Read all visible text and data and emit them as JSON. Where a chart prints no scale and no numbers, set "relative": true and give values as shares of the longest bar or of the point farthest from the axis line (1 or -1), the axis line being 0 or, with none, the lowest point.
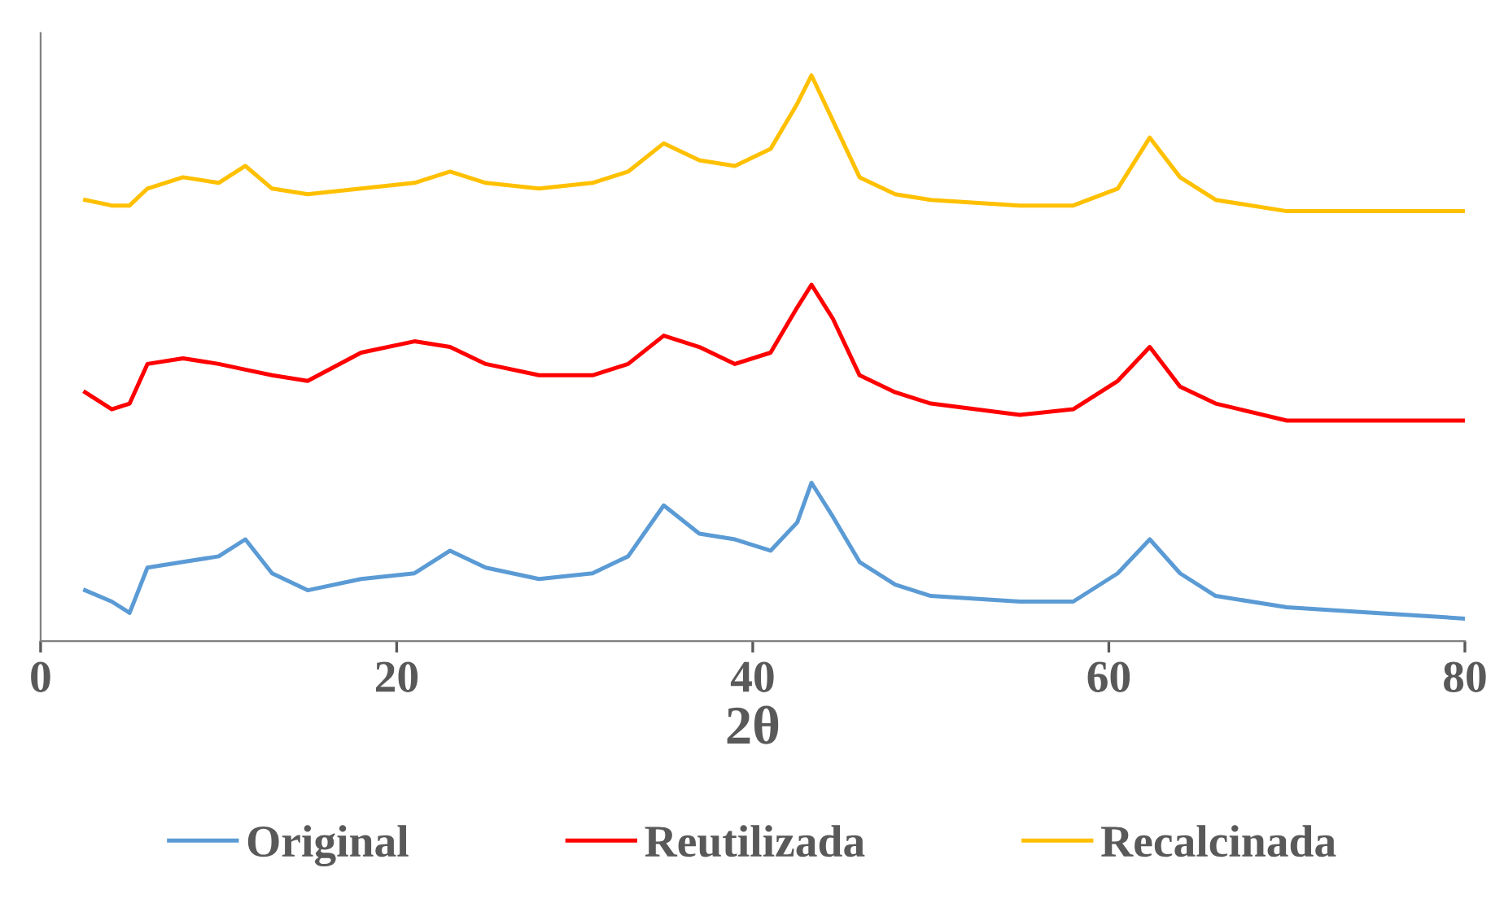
{
  "chart_data": {
    "type": "line",
    "relative": true,
    "xlabel": "2θ",
    "xlim": [
      0,
      80
    ],
    "xticks": [
      0,
      20,
      40,
      60,
      80
    ],
    "grid": false,
    "legend": "bottom",
    "marker": "none",
    "line_style": "solid",
    "x": [
      2.5,
      4,
      5,
      6,
      8,
      10,
      11.5,
      13,
      15,
      18,
      21,
      23,
      25,
      28,
      31,
      33,
      35,
      37,
      39,
      41,
      42.5,
      43.3,
      44.5,
      46,
      48,
      50,
      55,
      58,
      60.5,
      62.3,
      64,
      66,
      70,
      75,
      80
    ],
    "series": [
      {
        "name": "Original",
        "color": "#5b9bd5",
        "values": [
          0.09,
          0.07,
          0.05,
          0.13,
          0.14,
          0.15,
          0.18,
          0.12,
          0.09,
          0.11,
          0.12,
          0.16,
          0.13,
          0.11,
          0.12,
          0.15,
          0.24,
          0.19,
          0.18,
          0.16,
          0.21,
          0.28,
          0.22,
          0.14,
          0.1,
          0.08,
          0.07,
          0.07,
          0.12,
          0.18,
          0.12,
          0.08,
          0.06,
          0.05,
          0.04
        ]
      },
      {
        "name": "Reutilizada",
        "color": "#ff0000",
        "values": [
          0.44,
          0.41,
          0.42,
          0.49,
          0.5,
          0.49,
          0.48,
          0.47,
          0.46,
          0.51,
          0.53,
          0.52,
          0.49,
          0.47,
          0.47,
          0.49,
          0.54,
          0.52,
          0.49,
          0.51,
          0.59,
          0.63,
          0.57,
          0.47,
          0.44,
          0.42,
          0.4,
          0.41,
          0.46,
          0.52,
          0.45,
          0.42,
          0.39,
          0.39,
          0.39
        ]
      },
      {
        "name": "Recalcinada",
        "color": "#ffc000",
        "values": [
          0.78,
          0.77,
          0.77,
          0.8,
          0.82,
          0.81,
          0.84,
          0.8,
          0.79,
          0.8,
          0.81,
          0.83,
          0.81,
          0.8,
          0.81,
          0.83,
          0.88,
          0.85,
          0.84,
          0.87,
          0.95,
          1.0,
          0.92,
          0.82,
          0.79,
          0.78,
          0.77,
          0.77,
          0.8,
          0.89,
          0.82,
          0.78,
          0.76,
          0.76,
          0.76
        ]
      }
    ]
  }
}
